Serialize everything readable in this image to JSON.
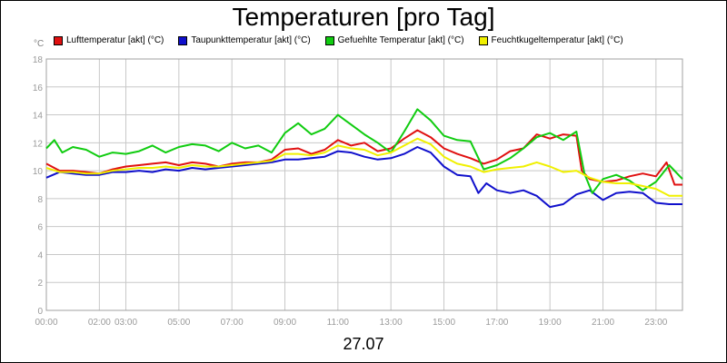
{
  "chart_data": {
    "type": "line",
    "title": "Temperaturen [pro Tag]",
    "date_label": "27.07",
    "unit_label": "°C",
    "ylim": [
      0,
      18
    ],
    "yticks": [
      0,
      2,
      4,
      6,
      8,
      10,
      12,
      14,
      16,
      18
    ],
    "xlim": [
      0,
      24
    ],
    "xticks": [
      {
        "hour": 0,
        "label": "00:00"
      },
      {
        "hour": 2,
        "label": "02:00"
      },
      {
        "hour": 3,
        "label": "03:00"
      },
      {
        "hour": 5,
        "label": "05:00"
      },
      {
        "hour": 7,
        "label": "07:00"
      },
      {
        "hour": 9,
        "label": "09:00"
      },
      {
        "hour": 11,
        "label": "11:00"
      },
      {
        "hour": 13,
        "label": "13:00"
      },
      {
        "hour": 15,
        "label": "15:00"
      },
      {
        "hour": 17,
        "label": "17:00"
      },
      {
        "hour": 19,
        "label": "19:00"
      },
      {
        "hour": 21,
        "label": "21:00"
      },
      {
        "hour": 23,
        "label": "23:00"
      }
    ],
    "grid": true,
    "series": [
      {
        "name": "Lufttemperatur [akt] (°C)",
        "color": "#e01010",
        "points": [
          [
            0,
            10.5
          ],
          [
            0.5,
            10.0
          ],
          [
            1,
            10.0
          ],
          [
            1.5,
            9.9
          ],
          [
            2,
            9.8
          ],
          [
            2.5,
            10.1
          ],
          [
            3,
            10.3
          ],
          [
            3.5,
            10.4
          ],
          [
            4,
            10.5
          ],
          [
            4.5,
            10.6
          ],
          [
            5,
            10.4
          ],
          [
            5.5,
            10.6
          ],
          [
            6,
            10.5
          ],
          [
            6.5,
            10.3
          ],
          [
            7,
            10.5
          ],
          [
            7.5,
            10.6
          ],
          [
            8,
            10.6
          ],
          [
            8.5,
            10.8
          ],
          [
            9,
            11.5
          ],
          [
            9.5,
            11.6
          ],
          [
            10,
            11.2
          ],
          [
            10.5,
            11.5
          ],
          [
            11,
            12.2
          ],
          [
            11.5,
            11.8
          ],
          [
            12,
            12.0
          ],
          [
            12.5,
            11.4
          ],
          [
            13,
            11.6
          ],
          [
            13.5,
            12.3
          ],
          [
            14,
            12.9
          ],
          [
            14.5,
            12.4
          ],
          [
            15,
            11.6
          ],
          [
            15.5,
            11.2
          ],
          [
            16,
            10.9
          ],
          [
            16.5,
            10.5
          ],
          [
            17,
            10.8
          ],
          [
            17.5,
            11.4
          ],
          [
            18,
            11.6
          ],
          [
            18.5,
            12.6
          ],
          [
            19,
            12.3
          ],
          [
            19.5,
            12.6
          ],
          [
            20,
            12.5
          ],
          [
            20.2,
            10.0
          ],
          [
            20.5,
            9.4
          ],
          [
            21,
            9.2
          ],
          [
            21.5,
            9.3
          ],
          [
            22,
            9.6
          ],
          [
            22.5,
            9.8
          ],
          [
            23,
            9.6
          ],
          [
            23.4,
            10.6
          ],
          [
            23.7,
            9.0
          ],
          [
            24,
            9.0
          ]
        ]
      },
      {
        "name": "Taupunkttemperatur [akt] (°C)",
        "color": "#1010cc",
        "points": [
          [
            0,
            9.5
          ],
          [
            0.5,
            9.9
          ],
          [
            1,
            9.8
          ],
          [
            1.5,
            9.7
          ],
          [
            2,
            9.7
          ],
          [
            2.5,
            9.9
          ],
          [
            3,
            9.9
          ],
          [
            3.5,
            10.0
          ],
          [
            4,
            9.9
          ],
          [
            4.5,
            10.1
          ],
          [
            5,
            10.0
          ],
          [
            5.5,
            10.2
          ],
          [
            6,
            10.1
          ],
          [
            6.5,
            10.2
          ],
          [
            7,
            10.3
          ],
          [
            7.5,
            10.4
          ],
          [
            8,
            10.5
          ],
          [
            8.5,
            10.6
          ],
          [
            9,
            10.8
          ],
          [
            9.5,
            10.8
          ],
          [
            10,
            10.9
          ],
          [
            10.5,
            11.0
          ],
          [
            11,
            11.4
          ],
          [
            11.5,
            11.3
          ],
          [
            12,
            11.0
          ],
          [
            12.5,
            10.8
          ],
          [
            13,
            10.9
          ],
          [
            13.5,
            11.2
          ],
          [
            14,
            11.7
          ],
          [
            14.5,
            11.3
          ],
          [
            15,
            10.3
          ],
          [
            15.5,
            9.7
          ],
          [
            16,
            9.6
          ],
          [
            16.3,
            8.4
          ],
          [
            16.6,
            9.1
          ],
          [
            17,
            8.6
          ],
          [
            17.5,
            8.4
          ],
          [
            18,
            8.6
          ],
          [
            18.5,
            8.2
          ],
          [
            19,
            7.4
          ],
          [
            19.5,
            7.6
          ],
          [
            20,
            8.3
          ],
          [
            20.5,
            8.6
          ],
          [
            21,
            7.9
          ],
          [
            21.5,
            8.4
          ],
          [
            22,
            8.5
          ],
          [
            22.5,
            8.4
          ],
          [
            23,
            7.7
          ],
          [
            23.5,
            7.6
          ],
          [
            24,
            7.6
          ]
        ]
      },
      {
        "name": "Gefuehlte Temperatur [akt] (°C)",
        "color": "#10cc10",
        "points": [
          [
            0,
            11.6
          ],
          [
            0.3,
            12.2
          ],
          [
            0.6,
            11.3
          ],
          [
            1,
            11.7
          ],
          [
            1.5,
            11.5
          ],
          [
            2,
            11.0
          ],
          [
            2.5,
            11.3
          ],
          [
            3,
            11.2
          ],
          [
            3.5,
            11.4
          ],
          [
            4,
            11.8
          ],
          [
            4.5,
            11.3
          ],
          [
            5,
            11.7
          ],
          [
            5.5,
            11.9
          ],
          [
            6,
            11.8
          ],
          [
            6.5,
            11.4
          ],
          [
            7,
            12.0
          ],
          [
            7.5,
            11.6
          ],
          [
            8,
            11.8
          ],
          [
            8.5,
            11.3
          ],
          [
            9,
            12.7
          ],
          [
            9.5,
            13.4
          ],
          [
            10,
            12.6
          ],
          [
            10.5,
            13.0
          ],
          [
            11,
            14.0
          ],
          [
            11.5,
            13.3
          ],
          [
            12,
            12.6
          ],
          [
            12.5,
            12.0
          ],
          [
            13,
            11.3
          ],
          [
            13.5,
            12.8
          ],
          [
            14,
            14.4
          ],
          [
            14.5,
            13.6
          ],
          [
            15,
            12.5
          ],
          [
            15.5,
            12.2
          ],
          [
            16,
            12.1
          ],
          [
            16.5,
            10.1
          ],
          [
            17,
            10.4
          ],
          [
            17.5,
            10.9
          ],
          [
            18,
            11.6
          ],
          [
            18.5,
            12.4
          ],
          [
            19,
            12.7
          ],
          [
            19.5,
            12.2
          ],
          [
            20,
            12.8
          ],
          [
            20.3,
            9.8
          ],
          [
            20.6,
            8.4
          ],
          [
            21,
            9.4
          ],
          [
            21.5,
            9.7
          ],
          [
            22,
            9.3
          ],
          [
            22.5,
            8.6
          ],
          [
            23,
            9.2
          ],
          [
            23.5,
            10.4
          ],
          [
            24,
            9.4
          ]
        ]
      },
      {
        "name": "Feuchtkugeltemperatur [akt] (°C)",
        "color": "#f0f000",
        "points": [
          [
            0,
            10.2
          ],
          [
            0.5,
            9.9
          ],
          [
            1,
            9.9
          ],
          [
            1.5,
            9.8
          ],
          [
            2,
            9.8
          ],
          [
            2.5,
            10.0
          ],
          [
            3,
            10.1
          ],
          [
            3.5,
            10.2
          ],
          [
            4,
            10.2
          ],
          [
            4.5,
            10.3
          ],
          [
            5,
            10.2
          ],
          [
            5.5,
            10.4
          ],
          [
            6,
            10.3
          ],
          [
            6.5,
            10.3
          ],
          [
            7,
            10.4
          ],
          [
            7.5,
            10.5
          ],
          [
            8,
            10.6
          ],
          [
            8.5,
            10.7
          ],
          [
            9,
            11.2
          ],
          [
            9.5,
            11.2
          ],
          [
            10,
            11.1
          ],
          [
            10.5,
            11.3
          ],
          [
            11,
            11.8
          ],
          [
            11.5,
            11.6
          ],
          [
            12,
            11.5
          ],
          [
            12.5,
            11.1
          ],
          [
            13,
            11.3
          ],
          [
            13.5,
            11.8
          ],
          [
            14,
            12.3
          ],
          [
            14.5,
            11.9
          ],
          [
            15,
            11.0
          ],
          [
            15.5,
            10.5
          ],
          [
            16,
            10.3
          ],
          [
            16.5,
            9.9
          ],
          [
            17,
            10.1
          ],
          [
            17.5,
            10.2
          ],
          [
            18,
            10.3
          ],
          [
            18.5,
            10.6
          ],
          [
            19,
            10.3
          ],
          [
            19.5,
            9.9
          ],
          [
            20,
            10.0
          ],
          [
            20.5,
            9.5
          ],
          [
            21,
            9.2
          ],
          [
            21.5,
            9.1
          ],
          [
            22,
            9.1
          ],
          [
            22.5,
            8.9
          ],
          [
            23,
            8.7
          ],
          [
            23.5,
            8.2
          ],
          [
            24,
            8.2
          ]
        ]
      }
    ]
  }
}
